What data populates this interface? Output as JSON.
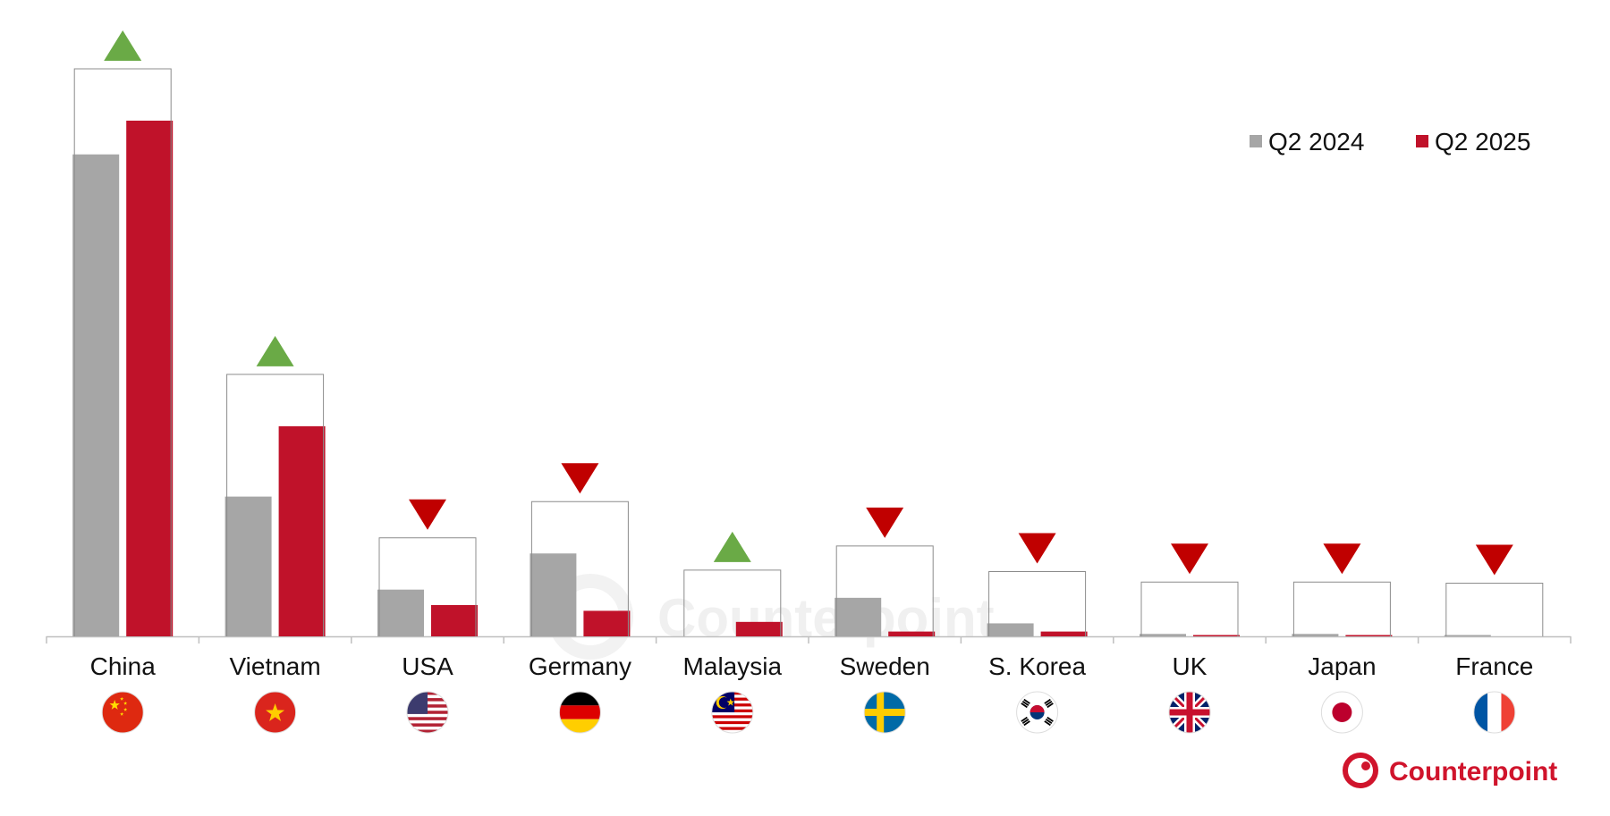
{
  "chart_data": {
    "type": "bar",
    "categories": [
      "China",
      "Vietnam",
      "USA",
      "Germany",
      "Malaysia",
      "Sweden",
      "S. Korea",
      "UK",
      "Japan",
      "France"
    ],
    "series": [
      {
        "name": "Q2 2024",
        "color": "#a6a6a6",
        "values": [
          100,
          29,
          9.7,
          17.2,
          0,
          8,
          2.7,
          0.5,
          0.5,
          0.1
        ]
      },
      {
        "name": "Q2 2025",
        "color": "#c0122a",
        "values": [
          107,
          43.6,
          6.5,
          5.3,
          3,
          1,
          1,
          0.2,
          0.2,
          0
        ]
      }
    ],
    "change_direction": [
      "up",
      "up",
      "down",
      "down",
      "up",
      "down",
      "down",
      "down",
      "down",
      "down"
    ],
    "change_colors": {
      "up": "#6aaa46",
      "down": "#c00000"
    },
    "legend_position": "top-right",
    "grid": false,
    "title": "",
    "xlabel": "",
    "ylabel": ""
  },
  "flags": [
    "China",
    "Vietnam",
    "USA",
    "Germany",
    "Malaysia",
    "Sweden",
    "S. Korea",
    "UK",
    "Japan",
    "France"
  ],
  "branding": {
    "logo_text": "Counterpoint",
    "watermark_text": "Counterpoint"
  }
}
